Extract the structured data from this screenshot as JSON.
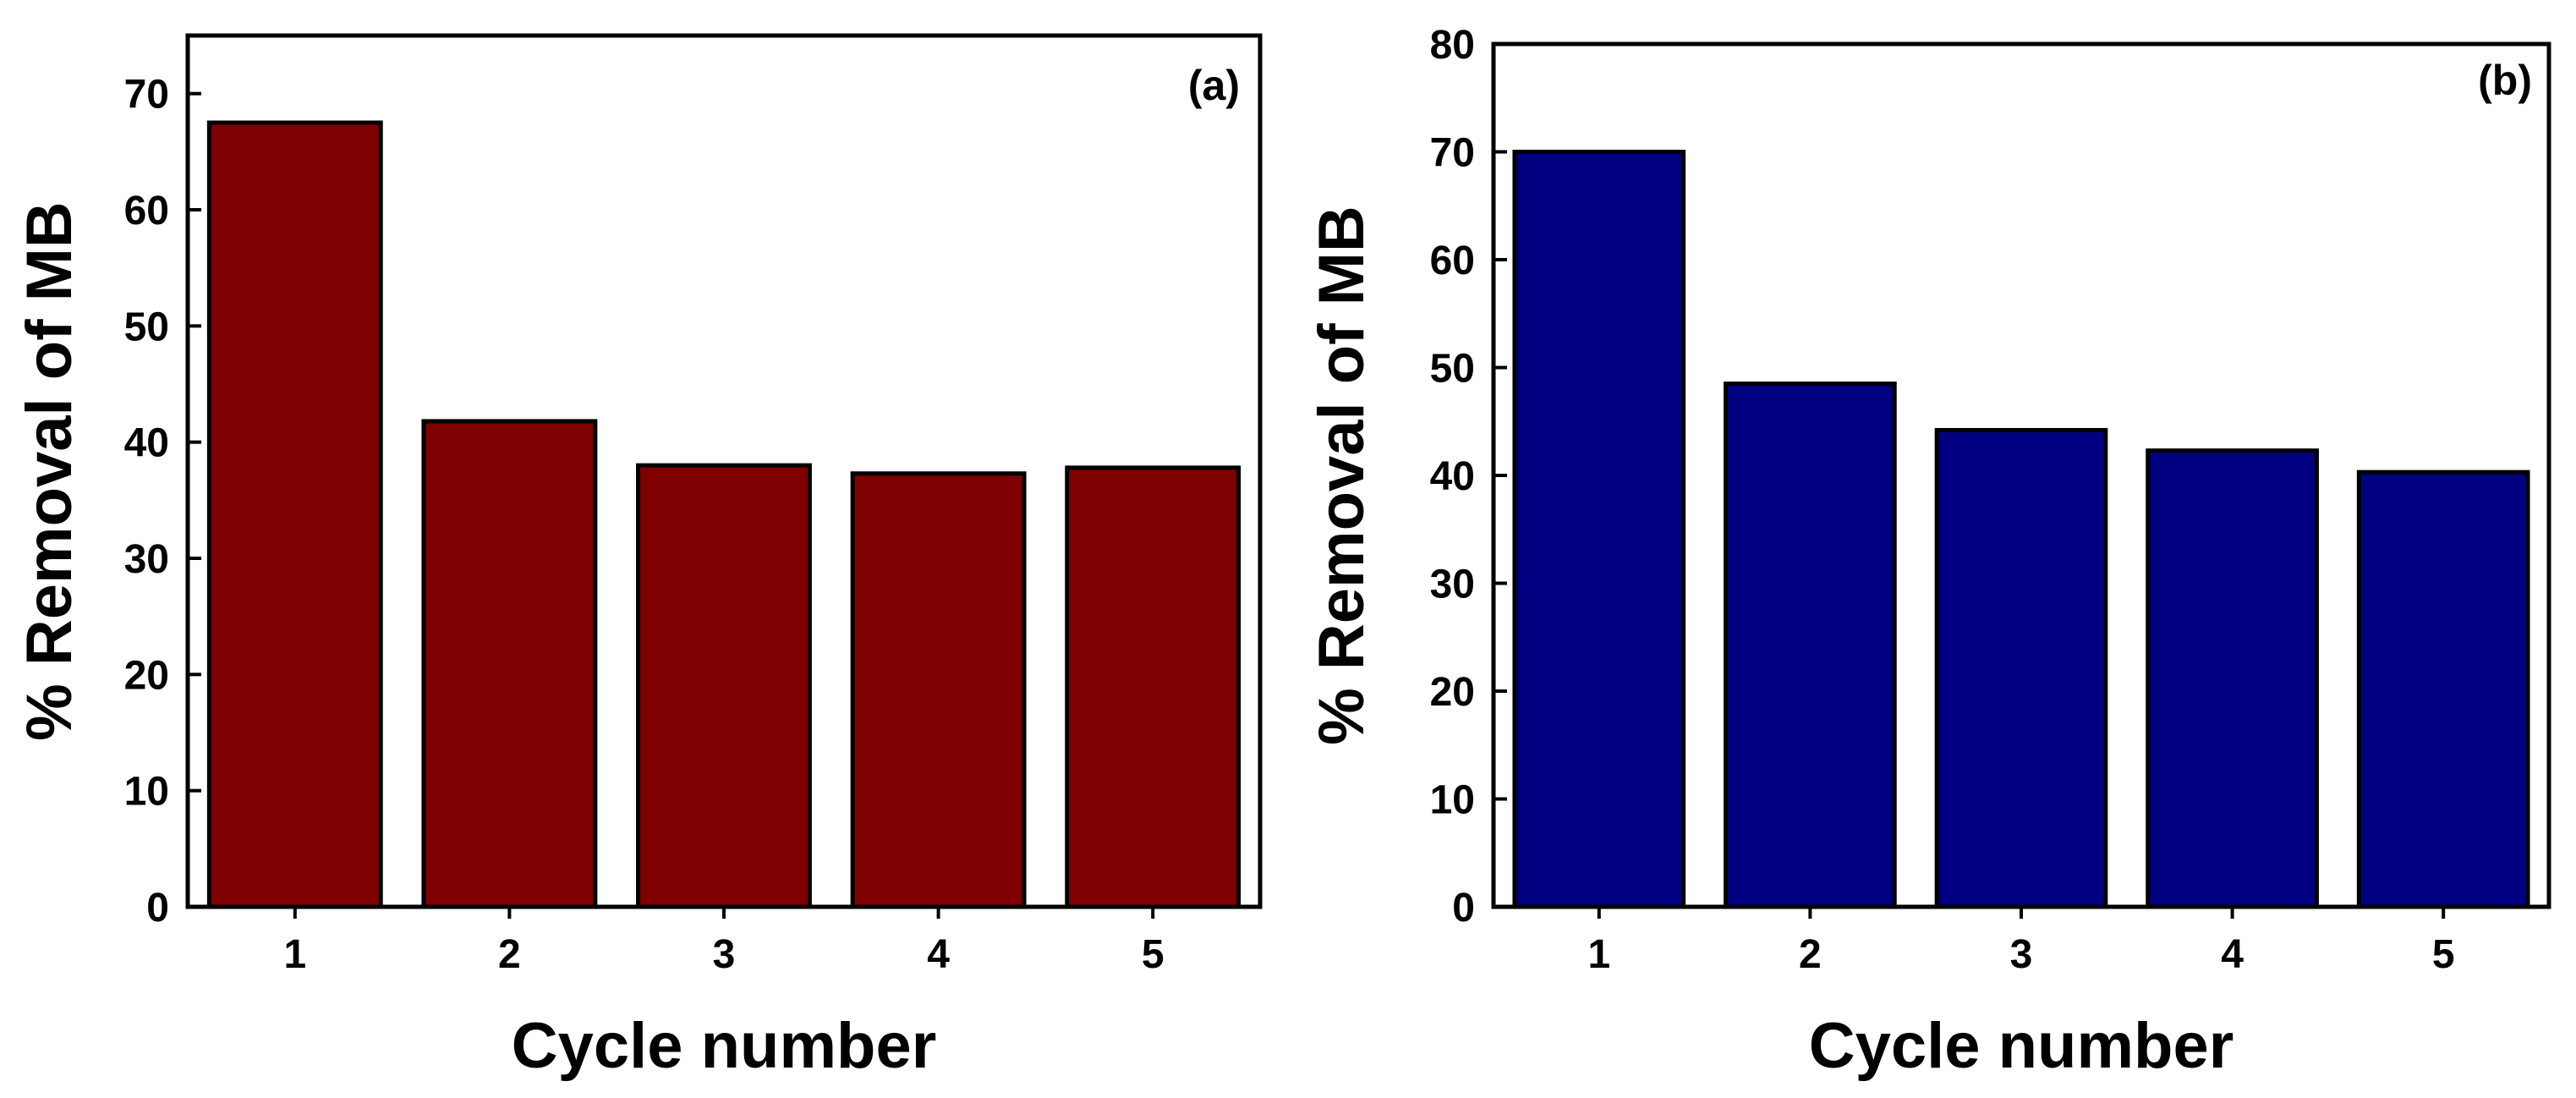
{
  "chart_data": [
    {
      "type": "bar",
      "panel_label": "(a)",
      "categories": [
        "1",
        "2",
        "3",
        "4",
        "5"
      ],
      "values": [
        67.5,
        41.8,
        38.0,
        37.3,
        37.8
      ],
      "xlabel": "Cycle number",
      "ylabel": "% Removal of MB",
      "ylim": [
        0,
        75
      ],
      "yticks": [
        "0",
        "10",
        "20",
        "30",
        "40",
        "50",
        "60",
        "70"
      ],
      "bar_color": "#7f0000",
      "grid": false
    },
    {
      "type": "bar",
      "panel_label": "(b)",
      "categories": [
        "1",
        "2",
        "3",
        "4",
        "5"
      ],
      "values": [
        70.0,
        48.5,
        44.2,
        42.3,
        40.3
      ],
      "xlabel": "Cycle number",
      "ylabel": "% Removal of MB",
      "ylim": [
        0,
        80
      ],
      "yticks": [
        "0",
        "10",
        "20",
        "30",
        "40",
        "50",
        "60",
        "70",
        "80"
      ],
      "bar_color": "#000080",
      "grid": false
    }
  ]
}
